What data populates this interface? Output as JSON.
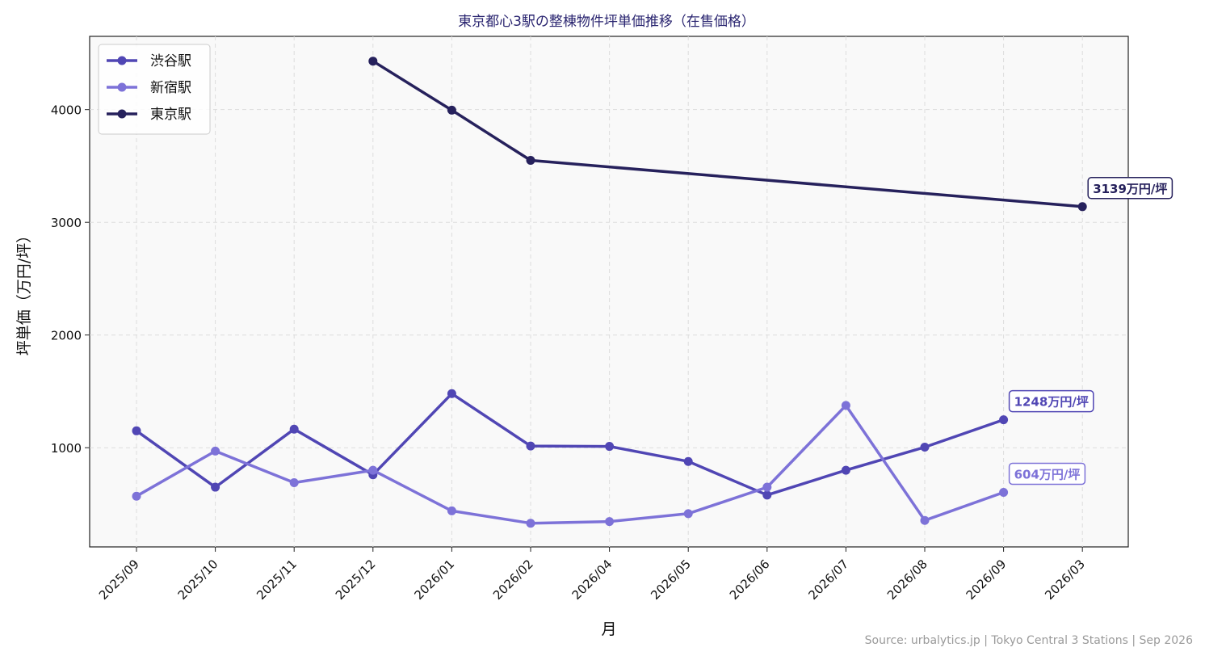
{
  "chart_data": {
    "type": "line",
    "title": "東京都心3駅の整棟物件坪単価推移（在售価格）",
    "xlabel": "月",
    "ylabel": "坪単価（万円/坪）",
    "categories": [
      "2025/09",
      "2025/10",
      "2025/11",
      "2025/12",
      "2026/01",
      "2026/02",
      "2026/04",
      "2026/05",
      "2026/06",
      "2026/07",
      "2026/08",
      "2026/09",
      "2026/03"
    ],
    "yticks": [
      1000,
      2000,
      3000,
      4000
    ],
    "ylim": [
      120,
      4650
    ],
    "grid": true,
    "legend_position": "top-left",
    "series": [
      {
        "name": "渋谷駅",
        "color": "#5046b4",
        "values": [
          1150,
          650,
          1165,
          760,
          1480,
          1015,
          1012,
          878,
          580,
          800,
          1005,
          1248,
          null
        ],
        "annotation": "1248万円/坪"
      },
      {
        "name": "新宿駅",
        "color": "#7d72d8",
        "values": [
          570,
          970,
          690,
          800,
          440,
          330,
          345,
          415,
          650,
          1375,
          355,
          604,
          null
        ],
        "annotation": "604万円/坪"
      },
      {
        "name": "東京駅",
        "color": "#26215c",
        "values": [
          null,
          null,
          null,
          4430,
          3995,
          3550,
          null,
          null,
          null,
          null,
          null,
          null,
          3139
        ],
        "annotation": "3139万円/坪"
      }
    ],
    "source": "Source: urbalytics.jp | Tokyo Central 3 Stations | Sep 2026"
  }
}
